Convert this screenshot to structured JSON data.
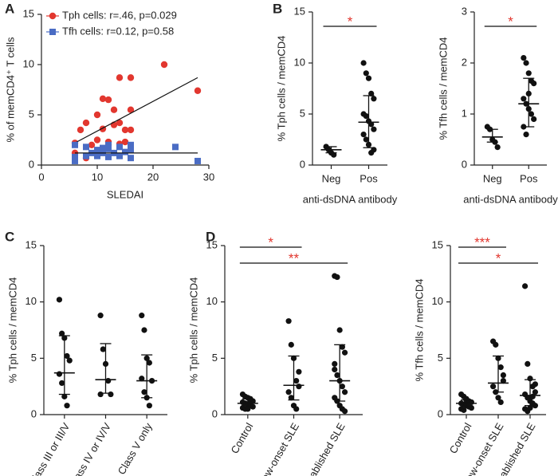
{
  "chart_data": [
    {
      "type": "scatter",
      "panel": "A",
      "xlabel": "SLEDAI",
      "ylabel": "% of memCD4⁺ T cells",
      "xlim": [
        0,
        30
      ],
      "xticks": [
        0,
        10,
        20,
        30
      ],
      "ylim": [
        0,
        15
      ],
      "yticks": [
        0,
        5,
        10,
        15
      ],
      "legend": "upper left",
      "series": [
        {
          "name": "Tph cells: r=.46, p=0.029",
          "color": "#e2372f",
          "marker": "circle",
          "x": [
            6,
            6,
            7,
            8,
            8,
            9,
            10,
            10,
            11,
            11,
            12,
            12,
            12,
            13,
            13,
            14,
            14,
            14,
            15,
            15,
            16,
            16,
            16,
            22,
            28
          ],
          "y": [
            2.2,
            1.2,
            3.5,
            4.2,
            0.7,
            2,
            5,
            2.5,
            3.6,
            6.6,
            2.3,
            6.5,
            2,
            5.5,
            4,
            4.2,
            8.7,
            2.1,
            3.5,
            2.3,
            8.7,
            5.5,
            3.5,
            10,
            7.4
          ],
          "fit": {
            "x": [
              6,
              28
            ],
            "y": [
              2.2,
              8.7
            ]
          }
        },
        {
          "name": "Tfh cells: r=0.12, p=0.58",
          "color": "#4a6cc4",
          "marker": "square",
          "x": [
            6,
            6,
            6,
            8,
            8,
            9,
            10,
            10,
            11,
            11,
            12,
            12,
            12,
            13,
            14,
            14,
            15,
            16,
            16,
            16,
            24,
            28
          ],
          "y": [
            2,
            0.4,
            0.8,
            1.8,
            0.9,
            1.2,
            1.5,
            0.9,
            1.7,
            1.2,
            2,
            1.6,
            0.8,
            1.2,
            1.8,
            0.9,
            1.3,
            2,
            1.5,
            0.7,
            1.8,
            0.4
          ],
          "fit": {
            "x": [
              6,
              28
            ],
            "y": [
              1.2,
              1.2
            ]
          }
        }
      ]
    },
    {
      "type": "strip",
      "panel": "B",
      "ylabel": "% Tph cells / memCD4",
      "xlabel": "anti-dsDNA antibody",
      "ylim": [
        0,
        15
      ],
      "yticks": [
        0,
        5,
        10,
        15
      ],
      "categories": [
        "Neg",
        "Pos"
      ],
      "color": "#111",
      "points": [
        [
          1.8,
          1.5,
          1.2,
          1.0
        ],
        [
          10,
          9,
          8.5,
          7,
          6.5,
          5,
          4.8,
          4.3,
          4,
          3.5,
          3,
          2.5,
          2,
          1.2,
          1.5
        ]
      ],
      "center": [
        1.5,
        4.2
      ],
      "lower": [
        1.2,
        1.7
      ],
      "upper": [
        1.8,
        6.8
      ],
      "significance": [
        {
          "groups": [
            0,
            1
          ],
          "label": "*"
        }
      ],
      "sig_color": "#e2372f"
    },
    {
      "type": "strip",
      "ylabel": "% Tfh cells / memCD4",
      "xlabel": "anti-dsDNA antibody",
      "ylim": [
        0,
        3
      ],
      "yticks": [
        0,
        1,
        2,
        3
      ],
      "categories": [
        "Neg",
        "Pos"
      ],
      "color": "#111",
      "points": [
        [
          0.75,
          0.7,
          0.5,
          0.45,
          0.35
        ],
        [
          2.1,
          2.0,
          1.8,
          1.65,
          1.6,
          1.3,
          1.2,
          1.1,
          1.0,
          0.9,
          0.75,
          0.6,
          1.4
        ]
      ],
      "center": [
        0.55,
        1.2
      ],
      "lower": [
        0.45,
        0.75
      ],
      "upper": [
        0.7,
        1.7
      ],
      "significance": [
        {
          "groups": [
            0,
            1
          ],
          "label": "*"
        }
      ],
      "sig_color": "#e2372f"
    },
    {
      "type": "strip",
      "panel": "C",
      "ylabel": "% Tph cells / memCD4",
      "ylim": [
        0,
        15
      ],
      "yticks": [
        0,
        5,
        10,
        15
      ],
      "categories": [
        "Class III or III/V",
        "Class IV or IV/V",
        "Class V only"
      ],
      "color": "#111",
      "points": [
        [
          10.2,
          7.2,
          6.8,
          5.2,
          4.8,
          3.6,
          2.8,
          1.6,
          0.8
        ],
        [
          8.8,
          5.8,
          4.5,
          3,
          1.8,
          1.8
        ],
        [
          8.8,
          7.5,
          5,
          4.6,
          3,
          3.2,
          2,
          1.5,
          0.8
        ]
      ],
      "center": [
        3.7,
        3.1,
        3
      ],
      "lower": [
        1.8,
        1.9,
        1.5
      ],
      "upper": [
        7.0,
        6.3,
        5.3
      ]
    },
    {
      "type": "strip",
      "panel": "D",
      "ylabel": "% Tph cells / memCD4",
      "ylim": [
        0,
        15
      ],
      "yticks": [
        0,
        5,
        10,
        15
      ],
      "categories": [
        "Control",
        "New-onset SLE",
        "Established SLE"
      ],
      "color": "#111",
      "points": [
        [
          1.8,
          1.6,
          1.5,
          1.3,
          1.2,
          1.1,
          1.0,
          0.9,
          0.8,
          0.7,
          0.6,
          0.5,
          0.5,
          1.4
        ],
        [
          8.3,
          6.2,
          5,
          3,
          2.5,
          2,
          1.5,
          0.8,
          0.5,
          3.8
        ],
        [
          12.3,
          12.2,
          7.5,
          6,
          5.5,
          4.5,
          3.5,
          3,
          2.5,
          2,
          1.5,
          1.2,
          0.8,
          0.5,
          0.3,
          4
        ]
      ],
      "center": [
        1.0,
        2.6,
        3
      ],
      "lower": [
        0.7,
        1.3,
        1.2
      ],
      "upper": [
        1.4,
        5.2,
        6.2
      ],
      "significance": [
        {
          "groups": [
            0,
            1
          ],
          "label": "*"
        },
        {
          "groups": [
            0,
            2
          ],
          "label": "**"
        }
      ],
      "sig_color": "#e2372f"
    },
    {
      "type": "strip",
      "ylabel": "% Tfh cells / memCD4",
      "ylim": [
        0,
        15
      ],
      "yticks": [
        0,
        5,
        10,
        15
      ],
      "categories": [
        "Control",
        "New-onset SLE",
        "Established SLE"
      ],
      "color": "#111",
      "points": [
        [
          1.8,
          1.6,
          1.4,
          1.2,
          1.1,
          1.0,
          0.9,
          0.8,
          0.7,
          0.6,
          0.5,
          0.4,
          1.3
        ],
        [
          6.5,
          6.2,
          5,
          4.2,
          3,
          2.5,
          2,
          1.5,
          1.1,
          3.5
        ],
        [
          11.4,
          4.5,
          3.2,
          2.5,
          2,
          1.8,
          1.5,
          1.2,
          1,
          0.8,
          0.5,
          0.3,
          0.6,
          1.6,
          2.7
        ]
      ],
      "center": [
        1,
        2.8,
        1.7
      ],
      "lower": [
        0.7,
        2,
        0.8
      ],
      "upper": [
        1.3,
        5.2,
        3.1
      ],
      "significance": [
        {
          "groups": [
            0,
            1
          ],
          "label": "***"
        },
        {
          "groups": [
            0,
            2
          ],
          "label": "*"
        }
      ],
      "sig_color": "#e2372f"
    }
  ]
}
